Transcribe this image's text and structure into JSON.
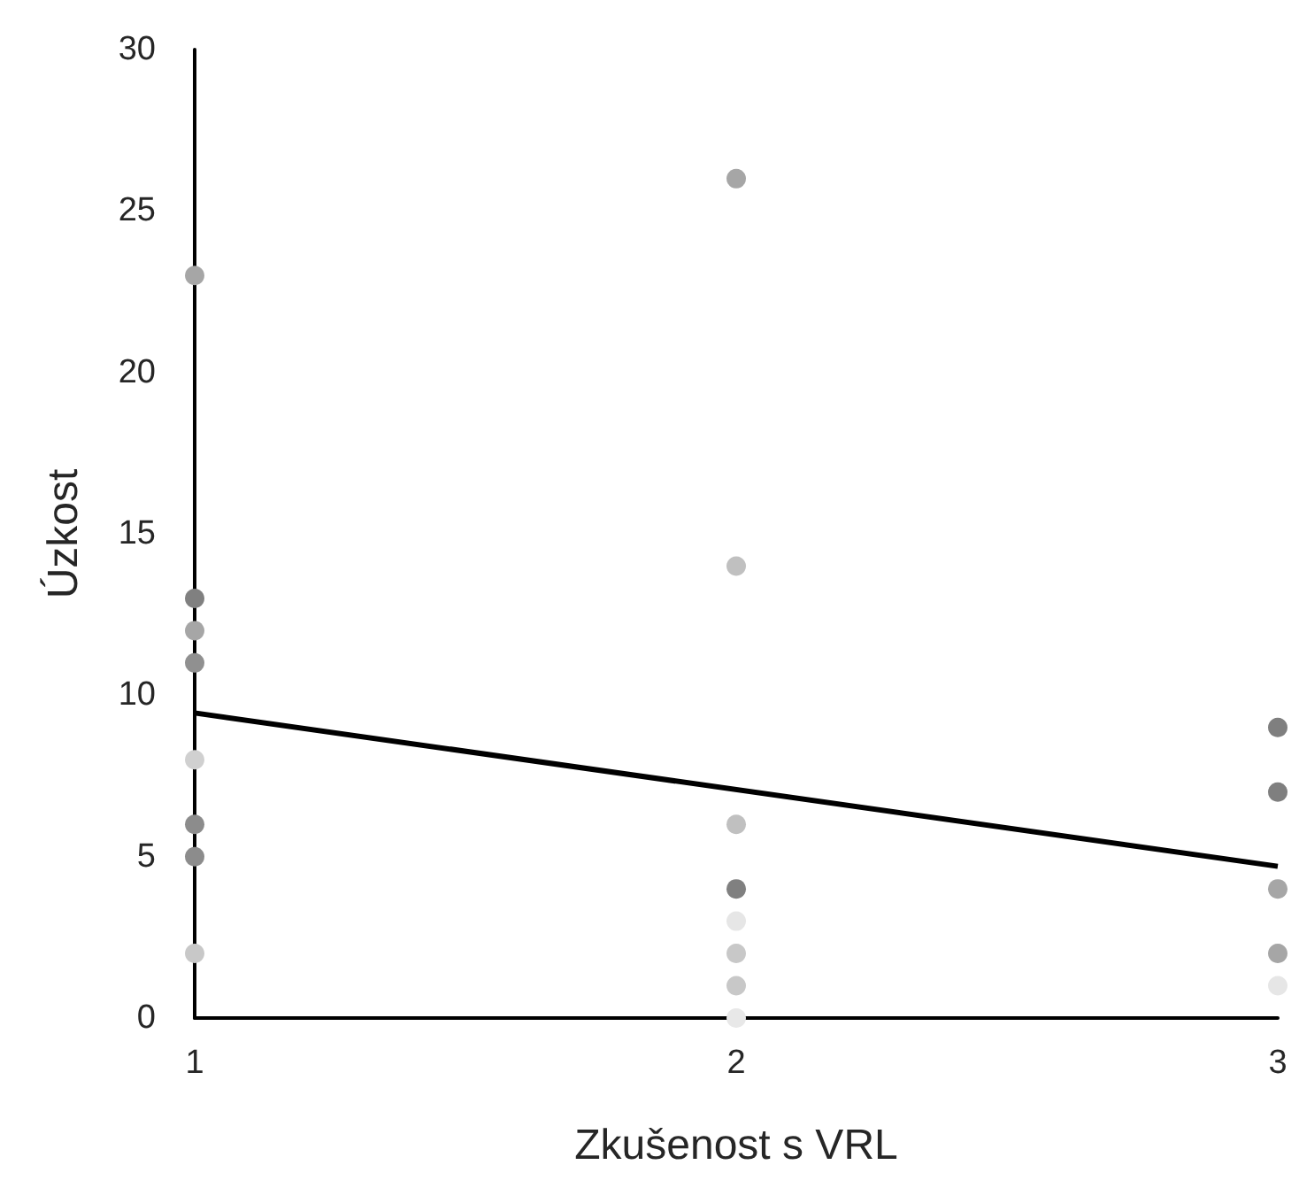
{
  "chart_data": {
    "type": "scatter",
    "xlabel": "Zkušenost s VRL",
    "ylabel": "Úzkost",
    "xlim": [
      1,
      3
    ],
    "xticks": [
      1,
      2,
      3
    ],
    "ylim": [
      0,
      30
    ],
    "yticks": [
      0,
      5,
      10,
      15,
      20,
      25,
      30
    ],
    "grid": false,
    "series": [
      {
        "marker": "circle",
        "x": [
          1,
          1,
          1,
          1,
          1,
          1,
          1,
          1,
          2,
          2,
          2,
          2,
          2,
          2,
          2,
          2,
          3,
          3,
          3,
          3,
          3
        ],
        "values": [
          23,
          13,
          12,
          11,
          8,
          6,
          5,
          2,
          26,
          14,
          6,
          4,
          3,
          2,
          1,
          0,
          9,
          7,
          4,
          2,
          1
        ],
        "colors": [
          "#a6a6a6",
          "#808080",
          "#a6a6a6",
          "#909090",
          "#d0d0d0",
          "#8c8c8c",
          "#8c8c8c",
          "#c8c8c8",
          "#a6a6a6",
          "#c0c0c0",
          "#c0c0c0",
          "#808080",
          "#e6e6e6",
          "#c8c8c8",
          "#c8c8c8",
          "#e8e8e8",
          "#7f7f7f",
          "#7f7f7f",
          "#a6a6a6",
          "#a6a6a6",
          "#e6e6e6"
        ]
      },
      {
        "type": "line",
        "x": [
          1,
          3
        ],
        "values": [
          9.45,
          4.7
        ],
        "color": "#000000",
        "line_style": "solid",
        "marker": "none"
      }
    ]
  }
}
